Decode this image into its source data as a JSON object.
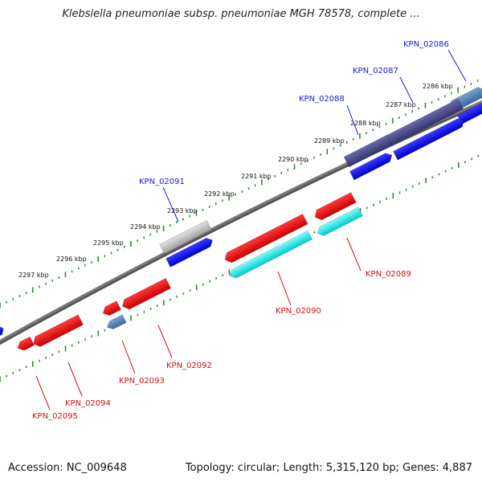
{
  "title": "Klebsiella pneumoniae subsp. pneumoniae MGH 78578, complete ...",
  "footer": {
    "accession": "Accession: NC_009648",
    "summary": "Topology: circular; Length: 5,315,120 bp; Genes: 4,887"
  },
  "colors": {
    "backbone": "#7a7a7a",
    "ruler_dots": "#2e8b2e",
    "forward_label": "#1a1acc",
    "reverse_label": "#cc1111"
  },
  "ticks": [
    {
      "label": "2286 kbp"
    },
    {
      "label": "2287 kbp"
    },
    {
      "label": "2288 kbp"
    },
    {
      "label": "2289 kbp"
    },
    {
      "label": "2290 kbp"
    },
    {
      "label": "2291 kbp"
    },
    {
      "label": "2292 kbp"
    },
    {
      "label": "2293 kbp"
    },
    {
      "label": "2294 kbp"
    },
    {
      "label": "2295 kbp"
    },
    {
      "label": "2296 kbp"
    },
    {
      "label": "2297 kbp"
    }
  ],
  "forward_labels": [
    {
      "text": "KPN_02086"
    },
    {
      "text": "KPN_02087"
    },
    {
      "text": "KPN_02088"
    },
    {
      "text": "KPN_02091"
    }
  ],
  "reverse_labels": [
    {
      "text": "KPN_02089"
    },
    {
      "text": "KPN_02090"
    },
    {
      "text": "KPN_02092"
    },
    {
      "text": "KPN_02093"
    },
    {
      "text": "KPN_02094"
    },
    {
      "text": "KPN_02095"
    }
  ]
}
